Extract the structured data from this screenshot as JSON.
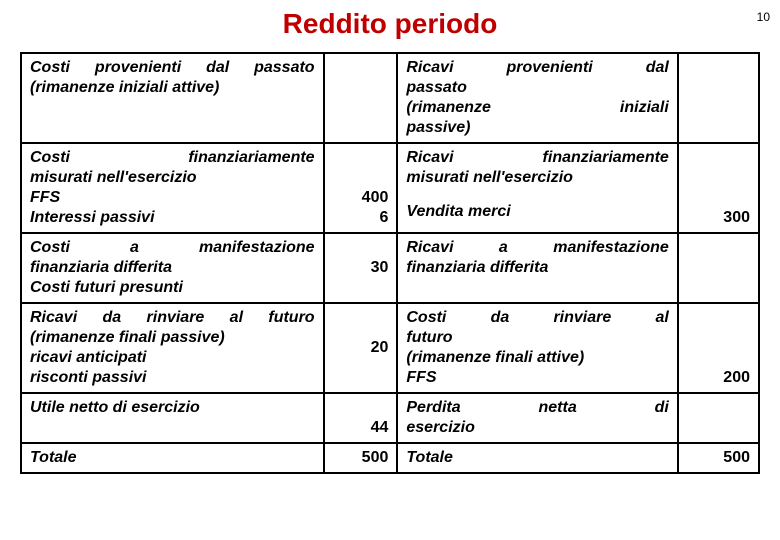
{
  "pageNumber": "10",
  "title": "Reddito periodo",
  "titleColor": "#c00000",
  "rows": [
    {
      "left": {
        "lines": [
          {
            "text": "Costi provenienti dal passato",
            "just": true
          },
          {
            "text": "(rimanenze iniziali attive)",
            "just": false
          }
        ]
      },
      "leftVal": "",
      "right": {
        "lines": [
          {
            "text": "Ricavi provenienti dal",
            "just": true
          },
          {
            "text": "passato",
            "just": false
          },
          {
            "text": "(rimanenze iniziali",
            "just": true
          },
          {
            "text": "passive)",
            "just": false
          }
        ]
      },
      "rightVal": ""
    },
    {
      "left": {
        "lines": [
          {
            "text": "Costi finanziariamente",
            "just": true
          },
          {
            "text": "misurati nell'esercizio",
            "just": false
          },
          {
            "text": "FFS",
            "just": false,
            "normal": true
          },
          {
            "text": "Interessi passivi",
            "just": false,
            "normal": true
          }
        ]
      },
      "leftVal": "400\n6",
      "right": {
        "lines": [
          {
            "text": "Ricavi finanziariamente",
            "just": true
          },
          {
            "text": "misurati nell'esercizio",
            "just": false
          },
          {
            "text": "Vendita merci",
            "just": false,
            "space": true
          }
        ]
      },
      "rightVal": "300"
    },
    {
      "left": {
        "lines": [
          {
            "text": "Costi a manifestazione",
            "just": true
          },
          {
            "text": "finanziaria differita",
            "just": false
          },
          {
            "text": "Costi futuri presunti",
            "just": false
          }
        ]
      },
      "leftVal": "30",
      "right": {
        "lines": [
          {
            "text": "Ricavi a manifestazione",
            "just": true
          },
          {
            "text": "finanziaria differita",
            "just": false
          }
        ]
      },
      "rightVal": ""
    },
    {
      "left": {
        "lines": [
          {
            "text": "Ricavi da rinviare al futuro",
            "just": true
          },
          {
            "text": "(rimanenze finali passive)",
            "just": false
          },
          {
            "text": "ricavi anticipati",
            "just": false
          },
          {
            "text": "risconti passivi",
            "just": false
          }
        ]
      },
      "leftVal": "20",
      "right": {
        "lines": [
          {
            "text": "Costi da rinviare al",
            "just": true
          },
          {
            "text": "futuro",
            "just": false
          },
          {
            "text": "(rimanenze finali attive)",
            "just": false
          },
          {
            "text": "FFS",
            "just": false
          }
        ]
      },
      "rightVal": "200"
    },
    {
      "left": {
        "lines": [
          {
            "text": "Utile netto di esercizio",
            "just": false
          }
        ]
      },
      "leftVal": "44",
      "right": {
        "lines": [
          {
            "text": "Perdita netta di",
            "just": true
          },
          {
            "text": "esercizio",
            "just": false
          }
        ]
      },
      "rightVal": ""
    },
    {
      "left": {
        "lines": [
          {
            "text": "Totale",
            "just": false
          }
        ]
      },
      "leftVal": "500",
      "right": {
        "lines": [
          {
            "text": "Totale",
            "just": false
          }
        ]
      },
      "rightVal": "500"
    }
  ]
}
